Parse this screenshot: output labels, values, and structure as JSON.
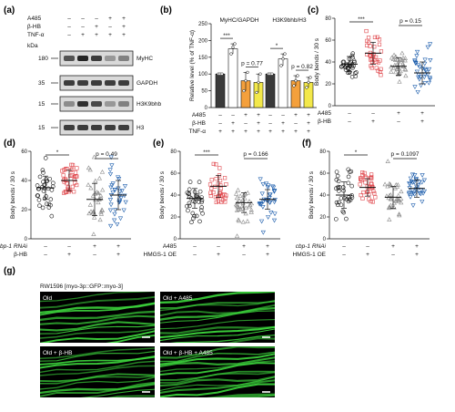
{
  "panels": {
    "a": {
      "label": "(a)",
      "treatments": [
        {
          "name": "A485",
          "signs": [
            "–",
            "–",
            "–",
            "+",
            "+"
          ]
        },
        {
          "name": "β-HB",
          "signs": [
            "–",
            "–",
            "+",
            "–",
            "+"
          ]
        },
        {
          "name": "TNF-α",
          "signs": [
            "–",
            "+",
            "+",
            "+",
            "+"
          ]
        }
      ],
      "kda_header": "kDa",
      "blots": [
        {
          "name": "MyHC",
          "marker": "180",
          "intensity": [
            0.75,
            0.95,
            0.85,
            0.45,
            0.55
          ]
        },
        {
          "name": "GAPDH",
          "marker": "35",
          "intensity": [
            0.85,
            0.85,
            0.85,
            0.85,
            0.85
          ]
        },
        {
          "name": "H3K9bhb",
          "marker": "15",
          "intensity": [
            0.5,
            0.9,
            0.8,
            0.45,
            0.55
          ]
        },
        {
          "name": "H3",
          "marker": "15",
          "intensity": [
            0.85,
            0.85,
            0.85,
            0.85,
            0.85
          ]
        }
      ]
    },
    "b": {
      "label": "(b)",
      "chart_data": {
        "type": "bar",
        "ylabel": "Relative level (% of TNF-α)",
        "group_titles": [
          "MyHC/GAPDH",
          "H3K9bhb/H3"
        ],
        "ylim": [
          0,
          250
        ],
        "yticks": [
          0,
          50,
          100,
          150,
          200,
          250
        ],
        "groups": [
          {
            "title": "MyHC/GAPDH",
            "values": [
              100,
              175,
              80,
              75
            ],
            "points": [
              [
                100,
                100,
                100
              ],
              [
                160,
                180,
                190
              ],
              [
                50,
                80,
                105
              ],
              [
                45,
                75,
                100
              ]
            ],
            "sig": "***",
            "p_text": "p = 0.77"
          },
          {
            "title": "H3K9bhb/H3",
            "values": [
              100,
              145,
              80,
              75
            ],
            "points": [
              [
                100,
                100,
                100
              ],
              [
                125,
                145,
                160
              ],
              [
                65,
                80,
                95
              ],
              [
                60,
                75,
                90
              ]
            ],
            "sig": "*",
            "p_text": "p = 0.82"
          }
        ],
        "bar_colors": [
          "#3a3a3a",
          "#ffffff",
          "#f4a03c",
          "#f3e84a"
        ],
        "treatments": [
          {
            "name": "A485",
            "signs": [
              "–",
              "–",
              "+",
              "+",
              "–",
              "–",
              "+",
              "+"
            ]
          },
          {
            "name": "β-HB",
            "signs": [
              "–",
              "+",
              "–",
              "+",
              "–",
              "+",
              "–",
              "+"
            ]
          },
          {
            "name": "TNF-α",
            "signs": [
              "+",
              "+",
              "+",
              "+",
              "+",
              "+",
              "+",
              "+"
            ]
          }
        ]
      }
    },
    "c": {
      "label": "(c)",
      "chart_data": {
        "type": "scatter",
        "ylabel": "Body bends / 30 s",
        "ylim": [
          0,
          80
        ],
        "yticks": [
          0,
          20,
          40,
          60,
          80
        ],
        "groups": [
          {
            "color": "#111111",
            "marker": "circle",
            "mean": 38,
            "sd": 7
          },
          {
            "color": "#e0474c",
            "marker": "square",
            "mean": 48,
            "sd": 10
          },
          {
            "color": "#8a8a8a",
            "marker": "triangle-up",
            "mean": 36,
            "sd": 8
          },
          {
            "color": "#1f5fad",
            "marker": "triangle-down",
            "mean": 30,
            "sd": 10
          }
        ],
        "sig": "***",
        "p_text": "p = 0.15",
        "treatments": [
          {
            "name": "A485",
            "signs": [
              "–",
              "–",
              "+",
              "+"
            ]
          },
          {
            "name": "β-HB",
            "signs": [
              "–",
              "+",
              "–",
              "+"
            ]
          }
        ]
      }
    },
    "d": {
      "label": "(d)",
      "chart_data": {
        "type": "scatter",
        "ylabel": "Body bends / 30 s",
        "ylim": [
          0,
          60
        ],
        "yticks": [
          0,
          20,
          40,
          60
        ],
        "groups": [
          {
            "color": "#111111",
            "marker": "circle",
            "mean": 35,
            "sd": 8
          },
          {
            "color": "#e0474c",
            "marker": "square",
            "mean": 40,
            "sd": 7
          },
          {
            "color": "#8a8a8a",
            "marker": "triangle-up",
            "mean": 27,
            "sd": 11
          },
          {
            "color": "#1f5fad",
            "marker": "triangle-down",
            "mean": 30,
            "sd": 10
          }
        ],
        "sig": "*",
        "p_text": "p = 0.49",
        "treatments": [
          {
            "name": "cbp-1 RNAi",
            "signs": [
              "–",
              "–",
              "+",
              "+"
            ]
          },
          {
            "name": "β-HB",
            "signs": [
              "–",
              "+",
              "–",
              "+"
            ]
          }
        ]
      }
    },
    "e": {
      "label": "(e)",
      "chart_data": {
        "type": "scatter",
        "ylabel": "Body bends / 30 s",
        "ylim": [
          0,
          80
        ],
        "yticks": [
          0,
          20,
          40,
          60,
          80
        ],
        "groups": [
          {
            "color": "#111111",
            "marker": "circle",
            "mean": 37,
            "sd": 9
          },
          {
            "color": "#e0474c",
            "marker": "square",
            "mean": 48,
            "sd": 10
          },
          {
            "color": "#8a8a8a",
            "marker": "triangle-up",
            "mean": 33,
            "sd": 9
          },
          {
            "color": "#1f5fad",
            "marker": "triangle-down",
            "mean": 36,
            "sd": 9
          }
        ],
        "sig": "***",
        "p_text": "p = 0.166",
        "treatments": [
          {
            "name": "A485",
            "signs": [
              "–",
              "–",
              "+",
              "+"
            ]
          },
          {
            "name": "HMGS-1 OE",
            "signs": [
              "–",
              "+",
              "–",
              "+"
            ]
          }
        ]
      }
    },
    "f": {
      "label": "(f)",
      "chart_data": {
        "type": "scatter",
        "ylabel": "Body bends / 30 s",
        "ylim": [
          0,
          80
        ],
        "yticks": [
          0,
          20,
          40,
          60,
          80
        ],
        "groups": [
          {
            "color": "#111111",
            "marker": "circle",
            "mean": 40,
            "sd": 12
          },
          {
            "color": "#e0474c",
            "marker": "square",
            "mean": 47,
            "sd": 8
          },
          {
            "color": "#8a8a8a",
            "marker": "triangle-up",
            "mean": 38,
            "sd": 10
          },
          {
            "color": "#1f5fad",
            "marker": "triangle-down",
            "mean": 46,
            "sd": 8
          }
        ],
        "sig": "*",
        "p_text": "p = 0.1097",
        "treatments": [
          {
            "name": "cbp-1 RNAi",
            "signs": [
              "–",
              "–",
              "+",
              "+"
            ]
          },
          {
            "name": "HMGS-1 OE",
            "signs": [
              "–",
              "+",
              "–",
              "+"
            ]
          }
        ]
      }
    },
    "g": {
      "label": "(g)",
      "strain": "RW1596 [myo-3p::GFP::myo-3]",
      "images": [
        "Old",
        "Old + A485",
        "Old + β-HB",
        "Old + β-HB + A485"
      ],
      "colors": {
        "fluorescence": "#3bd13b",
        "background": "#000000"
      }
    }
  }
}
